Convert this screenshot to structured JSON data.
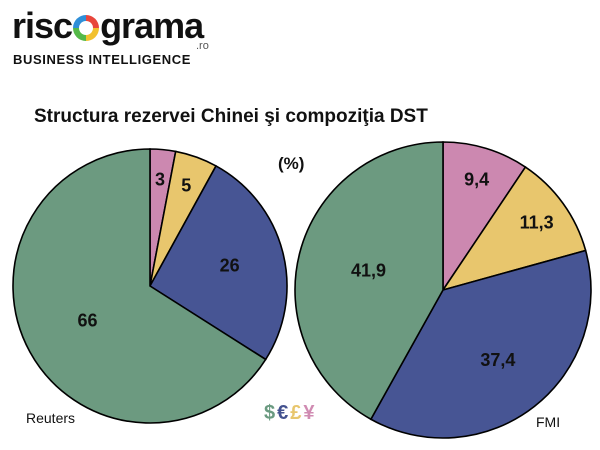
{
  "logo": {
    "word_left": "risc",
    "word_right": "grama",
    "suffix": ".ro",
    "tagline": "BUSINESS INTELLIGENCE"
  },
  "currency_symbols": [
    {
      "symbol": "$",
      "color": "#6a9a80"
    },
    {
      "symbol": "€",
      "color": "#44528f"
    },
    {
      "symbol": "£",
      "color": "#e8c66d"
    },
    {
      "symbol": "¥",
      "color": "#d08bb2"
    }
  ],
  "chart_data": {
    "title": "Structura rezervei Chinei şi compoziţia DST",
    "unit_label": "(%)",
    "type": "pie",
    "charts": [
      {
        "source": "Reuters",
        "slices": [
          {
            "label": "3",
            "value": 3,
            "color": "#cc88b0"
          },
          {
            "label": "5",
            "value": 5,
            "color": "#e8c66d"
          },
          {
            "label": "26",
            "value": 26,
            "color": "#475594"
          },
          {
            "label": "66",
            "value": 66,
            "color": "#6c9a80"
          }
        ]
      },
      {
        "source": "FMI",
        "slices": [
          {
            "label": "9,4",
            "value": 9.4,
            "color": "#cc88b0"
          },
          {
            "label": "11,3",
            "value": 11.3,
            "color": "#e8c66d"
          },
          {
            "label": "37,4",
            "value": 37.4,
            "color": "#475594"
          },
          {
            "label": "41,9",
            "value": 41.9,
            "color": "#6c9a80"
          }
        ]
      }
    ]
  }
}
